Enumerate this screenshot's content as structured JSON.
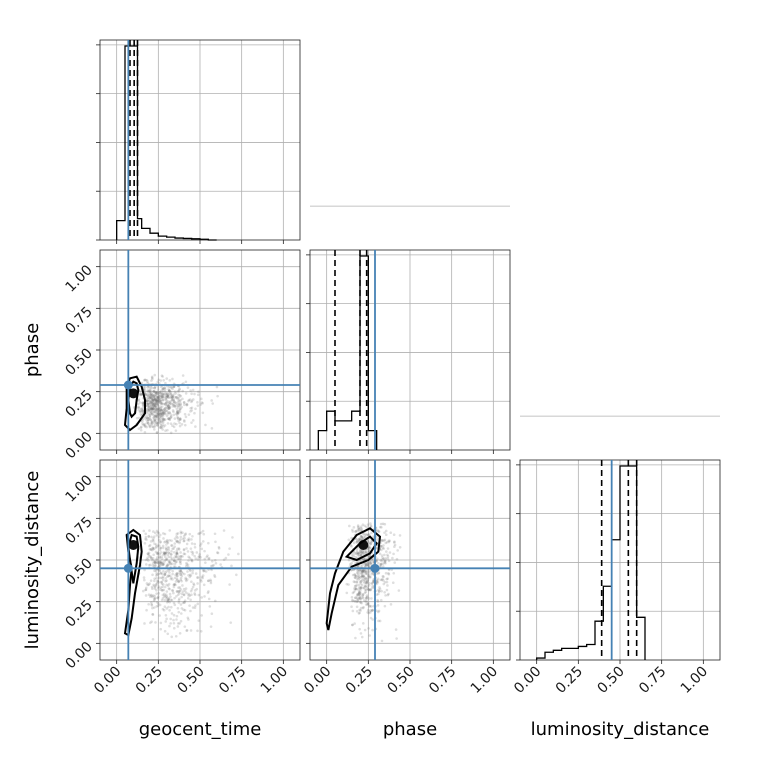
{
  "colors": {
    "truth": "#4682b4",
    "histogram": "#000000",
    "scatter": "#6e6e6e",
    "grid": "#b0b0b0"
  },
  "chart_data": {
    "type": "corner",
    "title": "",
    "parameters": [
      "geocent_time",
      "phase",
      "luminosity_distance"
    ],
    "ticks": [
      "0.00",
      "0.25",
      "0.50",
      "0.75",
      "1.00"
    ],
    "axis_range": [
      -0.1,
      1.1
    ],
    "truths": {
      "geocent_time": 0.07,
      "phase": 0.29,
      "luminosity_distance": 0.45
    },
    "diagonal": [
      {
        "parameter": "geocent_time",
        "bin_edges": [
          0.0,
          0.05,
          0.075,
          0.1,
          0.125,
          0.15,
          0.2,
          0.25,
          0.3,
          0.35,
          0.4,
          0.45,
          0.5,
          0.55,
          0.6
        ],
        "counts": [
          0.1,
          1.0,
          1.0,
          1.0,
          0.11,
          0.06,
          0.035,
          0.02,
          0.015,
          0.01,
          0.008,
          0.006,
          0.004,
          0.0
        ],
        "quantiles": [
          0.08,
          0.105,
          0.125
        ]
      },
      {
        "parameter": "phase",
        "bin_edges": [
          -0.05,
          0.0,
          0.025,
          0.05,
          0.075,
          0.1,
          0.125,
          0.15,
          0.175,
          0.2,
          0.225,
          0.25,
          0.275,
          0.3
        ],
        "counts": [
          0.1,
          0.2,
          0.2,
          0.15,
          0.15,
          0.15,
          0.15,
          0.2,
          0.2,
          1.0,
          1.0,
          0.1,
          0.1
        ],
        "quantiles": [
          0.05,
          0.2,
          0.24
        ]
      },
      {
        "parameter": "luminosity_distance",
        "bin_edges": [
          0.0,
          0.05,
          0.1,
          0.15,
          0.2,
          0.25,
          0.3,
          0.35,
          0.4,
          0.45,
          0.5,
          0.55,
          0.6,
          0.65
        ],
        "counts": [
          0.01,
          0.04,
          0.05,
          0.06,
          0.06,
          0.07,
          0.08,
          0.2,
          0.38,
          0.62,
          1.0,
          1.0,
          0.22
        ],
        "quantiles": [
          0.39,
          0.55,
          0.6
        ]
      }
    ],
    "off_diagonal": [
      {
        "x": "geocent_time",
        "y": "phase",
        "density_peak": [
          0.1,
          0.24
        ],
        "inner_contour": [
          [
            0.09,
            0.1
          ],
          [
            0.11,
            0.12
          ],
          [
            0.12,
            0.2
          ],
          [
            0.13,
            0.26
          ],
          [
            0.12,
            0.3
          ],
          [
            0.1,
            0.31
          ],
          [
            0.08,
            0.28
          ],
          [
            0.07,
            0.2
          ],
          [
            0.08,
            0.12
          ]
        ],
        "outer_contour": [
          [
            0.08,
            0.02
          ],
          [
            0.12,
            0.05
          ],
          [
            0.17,
            0.12
          ],
          [
            0.17,
            0.2
          ],
          [
            0.15,
            0.28
          ],
          [
            0.12,
            0.34
          ],
          [
            0.08,
            0.33
          ],
          [
            0.06,
            0.28
          ],
          [
            0.06,
            0.15
          ],
          [
            0.05,
            0.05
          ]
        ],
        "cloud": {
          "x_mean": 0.2,
          "x_sd": 0.12,
          "y_mean": 0.17,
          "y_sd": 0.08,
          "x_min": 0.03,
          "x_max": 0.75,
          "y_min": 0.0,
          "y_max": 0.35
        }
      },
      {
        "x": "geocent_time",
        "y": "luminosity_distance",
        "density_peak": [
          0.1,
          0.59
        ],
        "inner_contour": [
          [
            0.07,
            0.58
          ],
          [
            0.08,
            0.5
          ],
          [
            0.1,
            0.36
          ],
          [
            0.12,
            0.48
          ],
          [
            0.13,
            0.58
          ],
          [
            0.12,
            0.64
          ],
          [
            0.09,
            0.65
          ]
        ],
        "outer_contour": [
          [
            0.05,
            0.06
          ],
          [
            0.07,
            0.2
          ],
          [
            0.08,
            0.35
          ],
          [
            0.09,
            0.45
          ],
          [
            0.07,
            0.55
          ],
          [
            0.06,
            0.65
          ],
          [
            0.1,
            0.68
          ],
          [
            0.14,
            0.65
          ],
          [
            0.15,
            0.55
          ],
          [
            0.14,
            0.47
          ],
          [
            0.11,
            0.3
          ],
          [
            0.09,
            0.15
          ],
          [
            0.07,
            0.05
          ]
        ],
        "cloud": {
          "x_mean": 0.25,
          "x_sd": 0.16,
          "y_mean": 0.45,
          "y_sd": 0.18,
          "x_min": 0.03,
          "x_max": 0.95,
          "y_min": 0.0,
          "y_max": 0.68
        }
      },
      {
        "x": "phase",
        "y": "luminosity_distance",
        "density_peak": [
          0.22,
          0.59
        ],
        "inner_contour": [
          [
            0.12,
            0.52
          ],
          [
            0.2,
            0.6
          ],
          [
            0.26,
            0.64
          ],
          [
            0.3,
            0.6
          ],
          [
            0.26,
            0.54
          ],
          [
            0.18,
            0.5
          ]
        ],
        "outer_contour": [
          [
            0.0,
            0.12
          ],
          [
            0.02,
            0.3
          ],
          [
            0.05,
            0.42
          ],
          [
            0.1,
            0.55
          ],
          [
            0.18,
            0.65
          ],
          [
            0.26,
            0.69
          ],
          [
            0.32,
            0.64
          ],
          [
            0.31,
            0.55
          ],
          [
            0.25,
            0.5
          ],
          [
            0.15,
            0.46
          ],
          [
            0.07,
            0.35
          ],
          [
            0.03,
            0.18
          ],
          [
            0.01,
            0.08
          ]
        ],
        "cloud": {
          "x_mean": 0.2,
          "x_sd": 0.1,
          "y_mean": 0.48,
          "y_sd": 0.16,
          "x_min": 0.0,
          "x_max": 0.45,
          "y_min": 0.0,
          "y_max": 0.72
        }
      }
    ],
    "grid": true
  }
}
